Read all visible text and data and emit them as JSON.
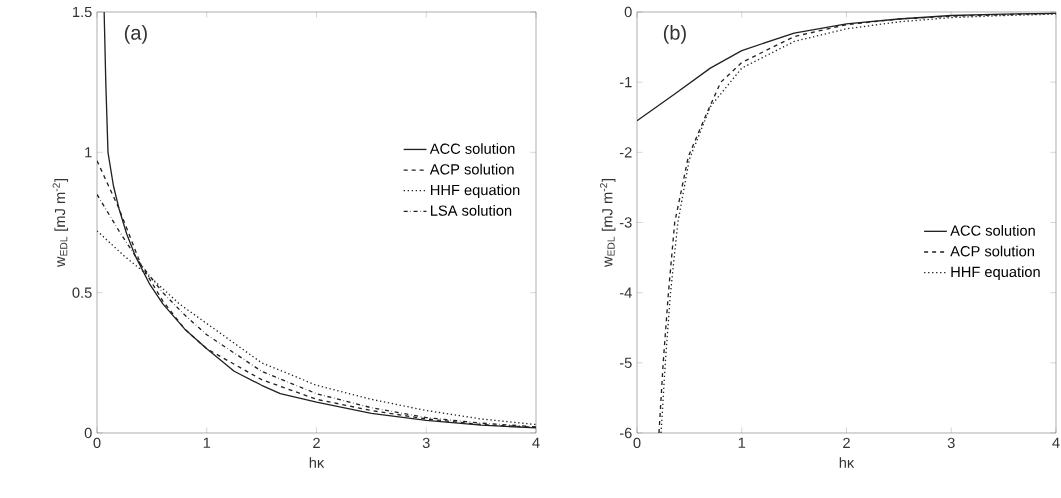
{
  "chart_data": [
    {
      "type": "line",
      "xlabel": "hκ",
      "ylabel": "w$_{EDL}$ [mJ m$^{-2}$]",
      "annotations": [
        "(a)"
      ],
      "xlim": [
        0,
        4
      ],
      "ylim": [
        0,
        1.5
      ],
      "xticks": [
        0,
        1,
        2,
        3,
        4
      ],
      "yticks": [
        0,
        0.5,
        1,
        1.5
      ],
      "legend": "right",
      "grid": false,
      "series": [
        {
          "name": "ACC solution",
          "color": "#222222",
          "line_style": "solid",
          "x": [
            0.065,
            0.08,
            0.1,
            0.15,
            0.2,
            0.27,
            0.35,
            0.48,
            0.6,
            0.8,
            1.0,
            1.25,
            1.5,
            1.67,
            2.0,
            2.5,
            3.0,
            3.5,
            4.0
          ],
          "values": [
            1.5,
            1.25,
            1.0,
            0.88,
            0.8,
            0.71,
            0.63,
            0.53,
            0.46,
            0.37,
            0.3,
            0.22,
            0.17,
            0.14,
            0.11,
            0.07,
            0.045,
            0.028,
            0.018
          ]
        },
        {
          "name": "ACP solution",
          "color": "#222222",
          "line_style": "dashed",
          "x": [
            0,
            0.2,
            0.4,
            0.6,
            0.8,
            1.0,
            1.5,
            2.0,
            2.5,
            3.0,
            3.5,
            4.0
          ],
          "values": [
            0.97,
            0.8,
            0.6,
            0.47,
            0.37,
            0.3,
            0.19,
            0.12,
            0.08,
            0.05,
            0.03,
            0.02
          ]
        },
        {
          "name": "HHF equation",
          "color": "#222222",
          "line_style": "dotted",
          "x": [
            0,
            0.25,
            0.5,
            0.75,
            1.0,
            1.25,
            1.5,
            2.0,
            2.5,
            3.0,
            3.5,
            4.0
          ],
          "values": [
            0.72,
            0.63,
            0.55,
            0.46,
            0.39,
            0.32,
            0.25,
            0.17,
            0.12,
            0.08,
            0.05,
            0.03
          ]
        },
        {
          "name": "LSA solution",
          "color": "#222222",
          "line_style": "dashdot",
          "x": [
            0,
            0.2,
            0.4,
            0.6,
            0.8,
            1.0,
            1.5,
            2.0,
            2.5,
            3.0,
            3.5,
            4.0
          ],
          "values": [
            0.85,
            0.72,
            0.6,
            0.5,
            0.42,
            0.35,
            0.22,
            0.14,
            0.09,
            0.055,
            0.035,
            0.022
          ]
        }
      ]
    },
    {
      "type": "line",
      "xlabel": "hκ",
      "ylabel": "w$_{EDL}$ [mJ m$^{-2}$]",
      "annotations": [
        "(b)"
      ],
      "xlim": [
        0,
        4
      ],
      "ylim": [
        -6,
        0
      ],
      "xticks": [
        0,
        1,
        2,
        3,
        4
      ],
      "yticks": [
        -6,
        -5,
        -4,
        -3,
        -2,
        -1,
        0
      ],
      "legend": "right",
      "grid": false,
      "series": [
        {
          "name": "ACC solution",
          "color": "#222222",
          "line_style": "solid",
          "x": [
            0,
            0.35,
            0.7,
            1.0,
            1.5,
            2.0,
            2.5,
            3.0,
            3.5,
            4.0
          ],
          "values": [
            -1.55,
            -1.18,
            -0.8,
            -0.55,
            -0.3,
            -0.17,
            -0.1,
            -0.05,
            -0.03,
            -0.02
          ]
        },
        {
          "name": "ACP solution",
          "color": "#222222",
          "line_style": "dashed",
          "x": [
            0.21,
            0.25,
            0.3,
            0.36,
            0.49,
            0.67,
            0.8,
            1.0,
            1.5,
            2.0,
            2.5,
            3.0,
            4.0
          ],
          "values": [
            -6,
            -5,
            -4,
            -3,
            -2.06,
            -1.43,
            -1.0,
            -0.72,
            -0.35,
            -0.18,
            -0.1,
            -0.06,
            -0.02
          ]
        },
        {
          "name": "HHF equation",
          "color": "#222222",
          "line_style": "dotted",
          "x": [
            0.23,
            0.27,
            0.32,
            0.39,
            0.5,
            0.7,
            1.0,
            1.5,
            2.0,
            2.5,
            3.0,
            3.5,
            4.0
          ],
          "values": [
            -6,
            -5,
            -4,
            -3,
            -2.1,
            -1.35,
            -0.8,
            -0.42,
            -0.24,
            -0.14,
            -0.08,
            -0.05,
            -0.03
          ]
        }
      ]
    }
  ]
}
